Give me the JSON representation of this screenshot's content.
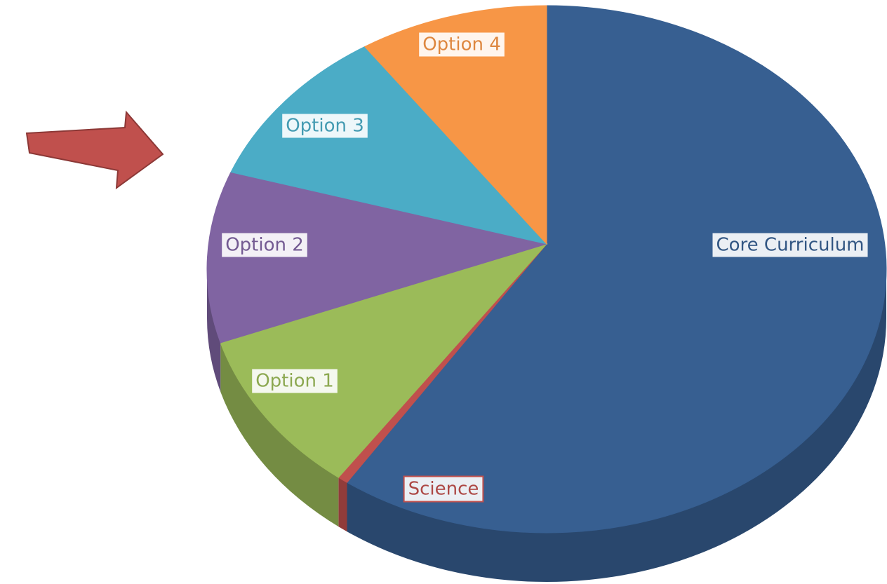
{
  "chart_data": {
    "type": "pie",
    "categories": [
      "Core Curriculum",
      "Science",
      "Option 1",
      "Option 2",
      "Option 3",
      "Option 4"
    ],
    "values": [
      60,
      0.5,
      10,
      10.5,
      10,
      9
    ],
    "colors": [
      "#375f91",
      "#c0504d",
      "#9bbb59",
      "#8064a2",
      "#4bacc6",
      "#f79646"
    ]
  }
}
